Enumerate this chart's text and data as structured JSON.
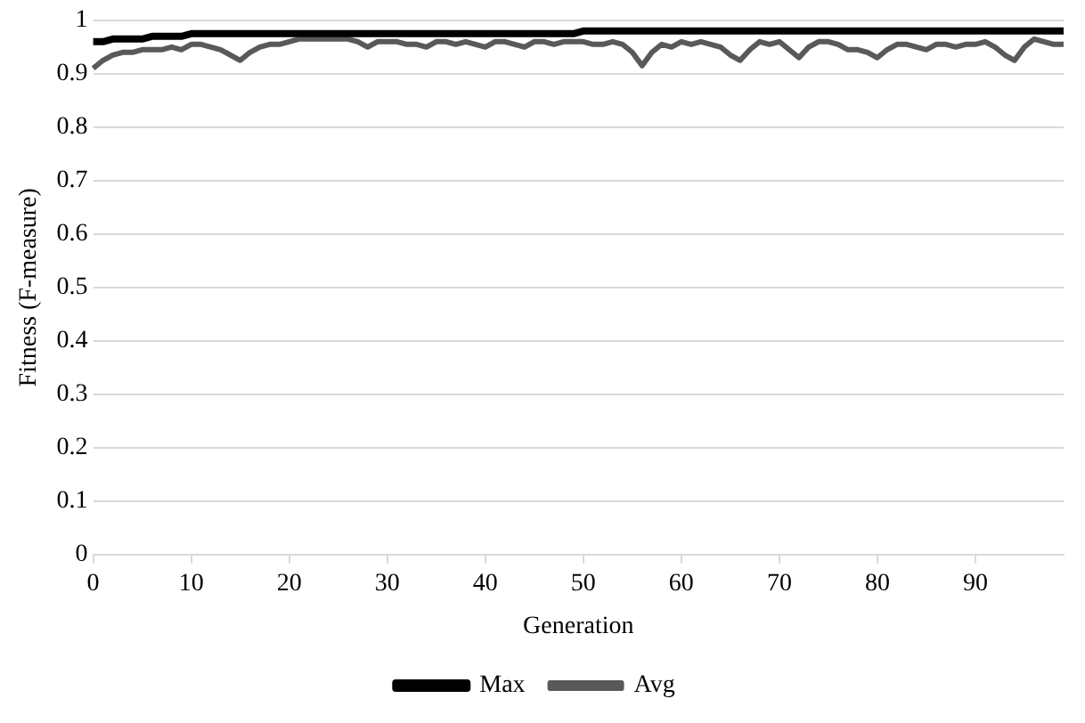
{
  "chart_data": {
    "type": "line",
    "xlabel": "Generation",
    "ylabel": "Fitness (F-measure)",
    "categories": [
      "0",
      null,
      null,
      null,
      null,
      null,
      null,
      null,
      null,
      null,
      "10",
      null,
      null,
      null,
      null,
      null,
      null,
      null,
      null,
      null,
      "20",
      null,
      null,
      null,
      null,
      null,
      null,
      null,
      null,
      null,
      "30",
      null,
      null,
      null,
      null,
      null,
      null,
      null,
      null,
      null,
      "40",
      null,
      null,
      null,
      null,
      null,
      null,
      null,
      null,
      null,
      "50",
      null,
      null,
      null,
      null,
      null,
      null,
      null,
      null,
      null,
      "60",
      null,
      null,
      null,
      null,
      null,
      null,
      null,
      null,
      null,
      "70",
      null,
      null,
      null,
      null,
      null,
      null,
      null,
      null,
      null,
      "80",
      null,
      null,
      null,
      null,
      null,
      null,
      null,
      null,
      null,
      "90",
      null,
      null,
      null,
      null,
      null,
      null,
      null,
      null,
      null
    ],
    "series": [
      {
        "name": "Max",
        "color": "#000000",
        "values": [
          0.96,
          0.96,
          0.965,
          0.965,
          0.965,
          0.965,
          0.97,
          0.97,
          0.97,
          0.97,
          0.975,
          0.975,
          0.975,
          0.975,
          0.975,
          0.975,
          0.975,
          0.975,
          0.975,
          0.975,
          0.975,
          0.975,
          0.975,
          0.975,
          0.975,
          0.975,
          0.975,
          0.975,
          0.975,
          0.975,
          0.975,
          0.975,
          0.975,
          0.975,
          0.975,
          0.975,
          0.975,
          0.975,
          0.975,
          0.975,
          0.975,
          0.975,
          0.975,
          0.975,
          0.975,
          0.975,
          0.975,
          0.975,
          0.975,
          0.975,
          0.98,
          0.98,
          0.98,
          0.98,
          0.98,
          0.98,
          0.98,
          0.98,
          0.98,
          0.98,
          0.98,
          0.98,
          0.98,
          0.98,
          0.98,
          0.98,
          0.98,
          0.98,
          0.98,
          0.98,
          0.98,
          0.98,
          0.98,
          0.98,
          0.98,
          0.98,
          0.98,
          0.98,
          0.98,
          0.98,
          0.98,
          0.98,
          0.98,
          0.98,
          0.98,
          0.98,
          0.98,
          0.98,
          0.98,
          0.98,
          0.98,
          0.98,
          0.98,
          0.98,
          0.98,
          0.98,
          0.98,
          0.98,
          0.98,
          0.98
        ]
      },
      {
        "name": "Avg",
        "color": "#595959",
        "values": [
          0.91,
          0.925,
          0.935,
          0.94,
          0.94,
          0.945,
          0.945,
          0.945,
          0.95,
          0.945,
          0.955,
          0.955,
          0.95,
          0.945,
          0.935,
          0.925,
          0.94,
          0.95,
          0.955,
          0.955,
          0.96,
          0.965,
          0.965,
          0.965,
          0.965,
          0.965,
          0.965,
          0.96,
          0.95,
          0.96,
          0.96,
          0.96,
          0.955,
          0.955,
          0.95,
          0.96,
          0.96,
          0.955,
          0.96,
          0.955,
          0.95,
          0.96,
          0.96,
          0.955,
          0.95,
          0.96,
          0.96,
          0.955,
          0.96,
          0.96,
          0.96,
          0.955,
          0.955,
          0.96,
          0.955,
          0.94,
          0.915,
          0.94,
          0.955,
          0.95,
          0.96,
          0.955,
          0.96,
          0.955,
          0.95,
          0.935,
          0.925,
          0.945,
          0.96,
          0.955,
          0.96,
          0.945,
          0.93,
          0.95,
          0.96,
          0.96,
          0.955,
          0.945,
          0.945,
          0.94,
          0.93,
          0.945,
          0.955,
          0.955,
          0.95,
          0.945,
          0.955,
          0.955,
          0.95,
          0.955,
          0.955,
          0.96,
          0.95,
          0.935,
          0.925,
          0.95,
          0.965,
          0.96,
          0.955,
          0.955
        ]
      }
    ],
    "ylim": [
      0,
      1
    ],
    "yticks": [
      0,
      0.1,
      0.2,
      0.3,
      0.4,
      0.5,
      0.6,
      0.7,
      0.8,
      0.9,
      1
    ],
    "grid": "y",
    "legend": "bottom",
    "marker": "none",
    "line_style": "solid"
  }
}
